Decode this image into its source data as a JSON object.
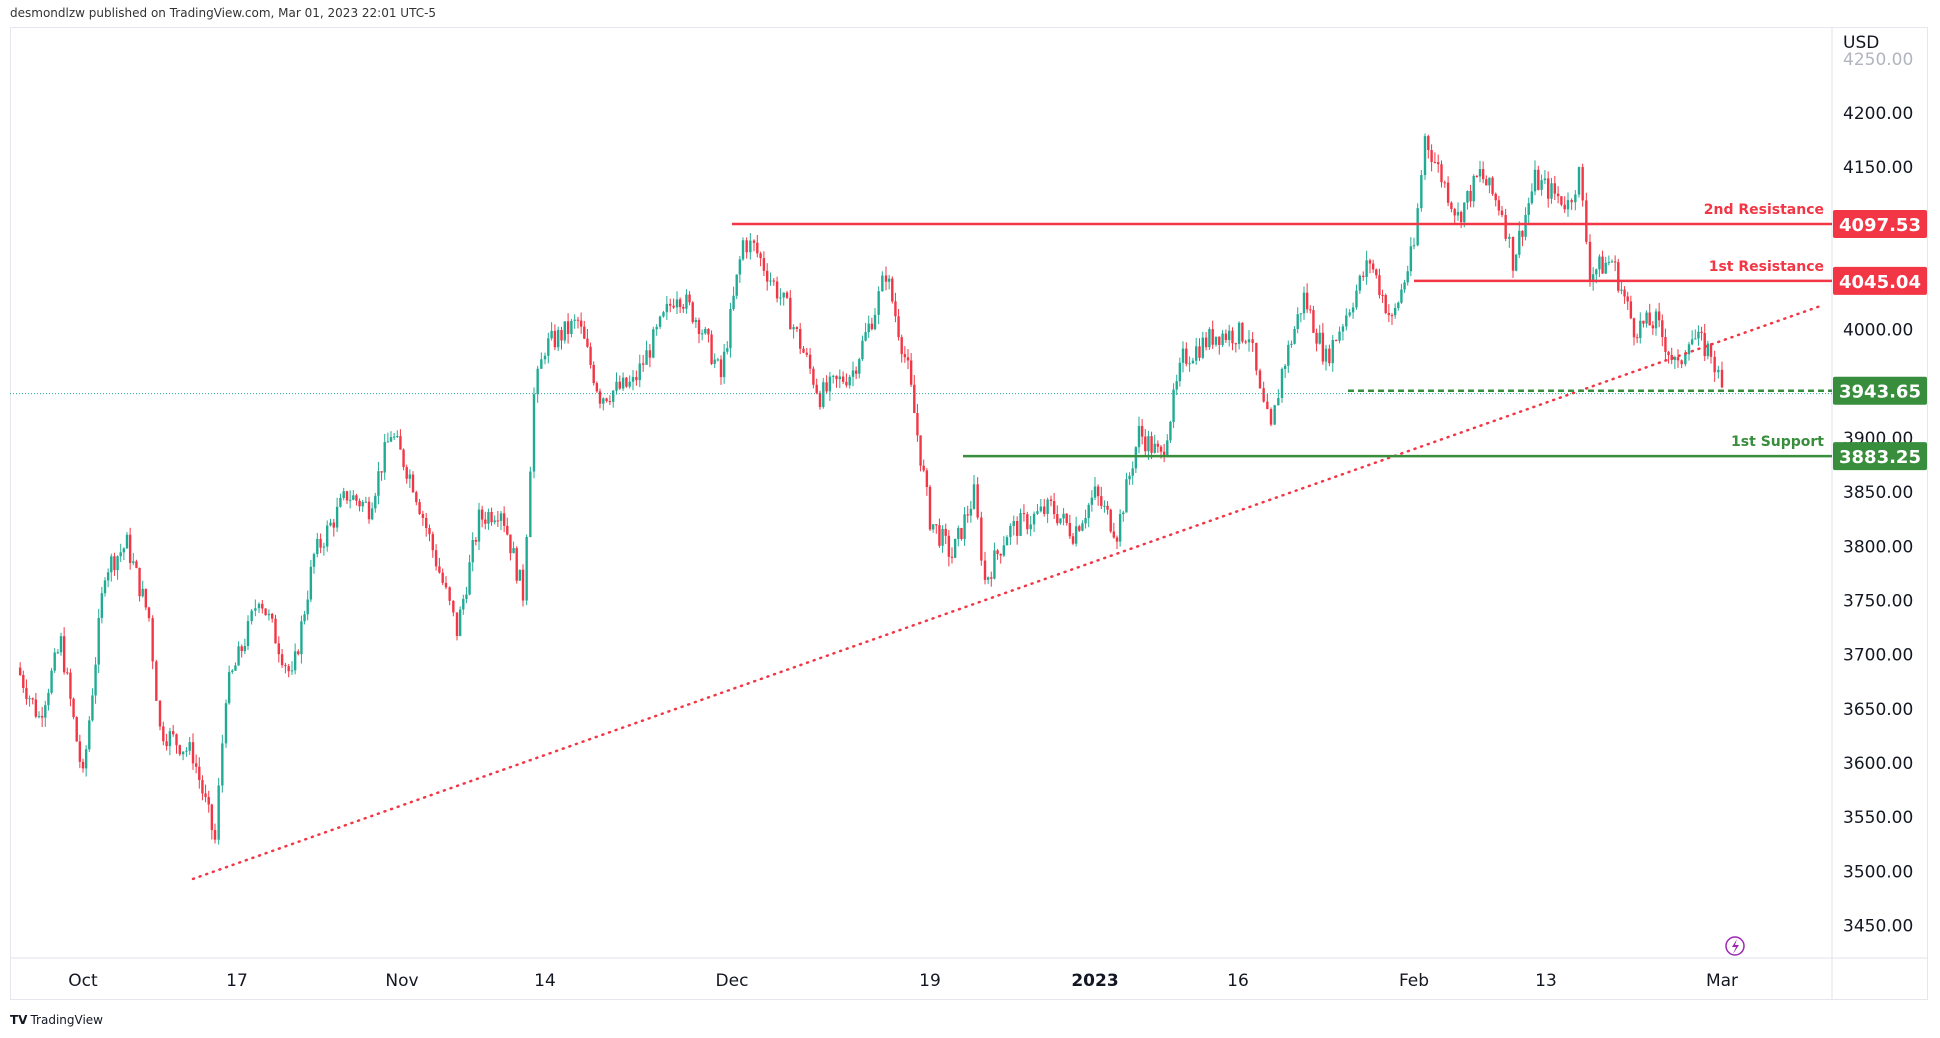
{
  "header": {
    "published": "desmondlzw published on TradingView.com, Mar 01, 2023 22:01 UTC-5"
  },
  "footer": {
    "brand_logo": "TV",
    "brand": "TradingView"
  },
  "chart_data": {
    "type": "candlestick",
    "currency": "USD",
    "ylim": [
      3420,
      4260
    ],
    "y_ticks": [
      "4250.00",
      "4200.00",
      "4150.00",
      "4000.00",
      "3900.00",
      "3850.00",
      "3800.00",
      "3750.00",
      "3700.00",
      "3650.00",
      "3600.00",
      "3550.00",
      "3500.00",
      "3450.00"
    ],
    "x_ticks": [
      {
        "label": "Oct",
        "date": "2022-10-03"
      },
      {
        "label": "17",
        "date": "2022-10-17"
      },
      {
        "label": "Nov",
        "date": "2022-11-01"
      },
      {
        "label": "14",
        "date": "2022-11-14"
      },
      {
        "label": "Dec",
        "date": "2022-12-01"
      },
      {
        "label": "19",
        "date": "2022-12-19"
      },
      {
        "label": "2023",
        "date": "2023-01-03",
        "bold": true
      },
      {
        "label": "16",
        "date": "2023-01-16"
      },
      {
        "label": "Feb",
        "date": "2023-02-01"
      },
      {
        "label": "13",
        "date": "2023-02-13"
      },
      {
        "label": "Mar",
        "date": "2023-03-01"
      }
    ],
    "colors": {
      "up": "#22ab94",
      "down": "#f23645",
      "resistance": "#f23645",
      "support": "#388e3c",
      "trendline": "#f23645"
    },
    "price_path": [
      [
        "2022-09-27",
        3688
      ],
      [
        "2022-09-29",
        3642
      ],
      [
        "2022-10-01",
        3711
      ],
      [
        "2022-10-03",
        3585
      ],
      [
        "2022-10-05",
        3779
      ],
      [
        "2022-10-07",
        3802
      ],
      [
        "2022-10-09",
        3734
      ],
      [
        "2022-10-10",
        3631
      ],
      [
        "2022-10-13",
        3608
      ],
      [
        "2022-10-15",
        3528
      ],
      [
        "2022-10-16",
        3665
      ],
      [
        "2022-10-18",
        3722
      ],
      [
        "2022-10-19",
        3756
      ],
      [
        "2022-10-22",
        3677
      ],
      [
        "2022-10-24",
        3791
      ],
      [
        "2022-10-27",
        3848
      ],
      [
        "2022-10-29",
        3836
      ],
      [
        "2022-10-31",
        3905
      ],
      [
        "2022-11-02",
        3859
      ],
      [
        "2022-11-05",
        3756
      ],
      [
        "2022-11-06",
        3722
      ],
      [
        "2022-11-08",
        3825
      ],
      [
        "2022-11-10",
        3836
      ],
      [
        "2022-11-12",
        3756
      ],
      [
        "2022-11-13",
        3939
      ],
      [
        "2022-11-14",
        3984
      ],
      [
        "2022-11-17",
        4007
      ],
      [
        "2022-11-19",
        3939
      ],
      [
        "2022-11-22",
        3950
      ],
      [
        "2022-11-26",
        4036
      ],
      [
        "2022-11-28",
        4007
      ],
      [
        "2022-11-30",
        3956
      ],
      [
        "2022-12-02",
        4081
      ],
      [
        "2022-12-03",
        4076
      ],
      [
        "2022-12-06",
        4019
      ],
      [
        "2022-12-09",
        3939
      ],
      [
        "2022-12-12",
        3962
      ],
      [
        "2022-12-14",
        4019
      ],
      [
        "2022-12-15",
        4053
      ],
      [
        "2022-12-17",
        3962
      ],
      [
        "2022-12-19",
        3825
      ],
      [
        "2022-12-21",
        3791
      ],
      [
        "2022-12-23",
        3848
      ],
      [
        "2022-12-24",
        3768
      ],
      [
        "2022-12-26",
        3813
      ],
      [
        "2022-12-30",
        3836
      ],
      [
        "2023-01-01",
        3813
      ],
      [
        "2023-01-03",
        3848
      ],
      [
        "2023-01-05",
        3813
      ],
      [
        "2023-01-07",
        3905
      ],
      [
        "2023-01-09",
        3882
      ],
      [
        "2023-01-11",
        3973
      ],
      [
        "2023-01-14",
        3996
      ],
      [
        "2023-01-17",
        3996
      ],
      [
        "2023-01-18",
        3939
      ],
      [
        "2023-01-19",
        3905
      ],
      [
        "2023-01-20",
        3962
      ],
      [
        "2023-01-22",
        4030
      ],
      [
        "2023-01-24",
        3973
      ],
      [
        "2023-01-28",
        4064
      ],
      [
        "2023-01-30",
        4007
      ],
      [
        "2023-02-01",
        4076
      ],
      [
        "2023-02-02",
        4178
      ],
      [
        "2023-02-05",
        4104
      ],
      [
        "2023-02-07",
        4144
      ],
      [
        "2023-02-09",
        4110
      ],
      [
        "2023-02-10",
        4064
      ],
      [
        "2023-02-12",
        4138
      ],
      [
        "2023-02-15",
        4116
      ],
      [
        "2023-02-16",
        4144
      ],
      [
        "2023-02-17",
        4053
      ],
      [
        "2023-02-19",
        4064
      ],
      [
        "2023-02-21",
        4002
      ],
      [
        "2023-02-23",
        4007
      ],
      [
        "2023-02-25",
        3962
      ],
      [
        "2023-02-26",
        3996
      ],
      [
        "2023-02-28",
        3979
      ],
      [
        "2023-03-01",
        3944
      ]
    ],
    "last_price": 3941,
    "levels": [
      {
        "name": "2nd Resistance",
        "value": 4097.53,
        "label": "4097.53",
        "start": "2022-12-01",
        "style": "solid",
        "kind": "resistance"
      },
      {
        "name": "1st Resistance",
        "value": 4045.04,
        "label": "4045.04",
        "start": "2023-02-01",
        "style": "solid",
        "kind": "resistance"
      },
      {
        "name": "",
        "value": 3943.65,
        "label": "3943.65",
        "start": "2023-01-26",
        "style": "dashed",
        "kind": "support"
      },
      {
        "name": "1st Support",
        "value": 3883.25,
        "label": "3883.25",
        "start": "2022-12-22",
        "style": "solid",
        "kind": "support"
      }
    ],
    "trendline": {
      "from": [
        "2022-10-13",
        3493
      ],
      "to": [
        "2023-03-10",
        4022
      ],
      "style": "dotted"
    },
    "icons": [
      "lightning-icon"
    ]
  }
}
